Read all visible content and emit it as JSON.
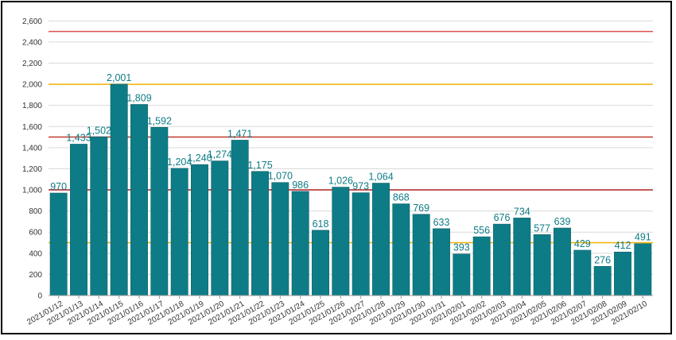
{
  "chart_data": {
    "type": "bar",
    "title": "",
    "xlabel": "",
    "ylabel": "",
    "ylim": [
      0,
      2700
    ],
    "yticks": [
      0,
      200,
      400,
      600,
      800,
      1000,
      1200,
      1400,
      1600,
      1800,
      2000,
      2200,
      2400,
      2600
    ],
    "ytick_labels": [
      "0",
      "200",
      "400",
      "600",
      "800",
      "1,000",
      "1,200",
      "1,400",
      "1,600",
      "1,800",
      "2,000",
      "2,200",
      "2,400",
      "2,600"
    ],
    "grid": true,
    "legend": "none",
    "categories": [
      "2021/01/12",
      "2021/01/13",
      "2021/01/14",
      "2021/01/15",
      "2021/01/16",
      "2021/01/17",
      "2021/01/18",
      "2021/01/19",
      "2021/01/20",
      "2021/01/21",
      "2021/01/22",
      "2021/01/23",
      "2021/01/24",
      "2021/01/25",
      "2021/01/26",
      "2021/01/27",
      "2021/01/28",
      "2021/01/29",
      "2021/01/30",
      "2021/01/31",
      "2021/02/01",
      "2021/02/02",
      "2021/02/03",
      "2021/02/04",
      "2021/02/05",
      "2021/02/06",
      "2021/02/07",
      "2021/02/08",
      "2021/02/09",
      "2021/02/10"
    ],
    "values": [
      970,
      1433,
      1502,
      2001,
      1809,
      1592,
      1204,
      1240,
      1274,
      1471,
      1175,
      1070,
      986,
      618,
      1026,
      973,
      1064,
      868,
      769,
      633,
      393,
      556,
      676,
      734,
      577,
      639,
      429,
      276,
      412,
      491
    ],
    "value_labels": [
      "970",
      "1,433",
      "1,502",
      "2,001",
      "1,809",
      "1,592",
      "1,204",
      "1,240",
      "1,274",
      "1,471",
      "1,175",
      "1,070",
      "986",
      "618",
      "1,026",
      "973",
      "1,064",
      "868",
      "769",
      "633",
      "393",
      "556",
      "676",
      "734",
      "577",
      "639",
      "429",
      "276",
      "412",
      "491"
    ],
    "reference_lines": [
      {
        "value": 2500,
        "color": "#d9534f"
      },
      {
        "value": 2000,
        "color": "#f0b400"
      },
      {
        "value": 1500,
        "color": "#c0392b"
      },
      {
        "value": 1000,
        "color": "#b22222"
      },
      {
        "value": 500,
        "color": "#f0b400"
      }
    ],
    "colors": {
      "bar": "#0e7c86",
      "bar_edge": "#0a5f66",
      "label": "#0e7c86",
      "grid": "#d9d9d9"
    }
  }
}
